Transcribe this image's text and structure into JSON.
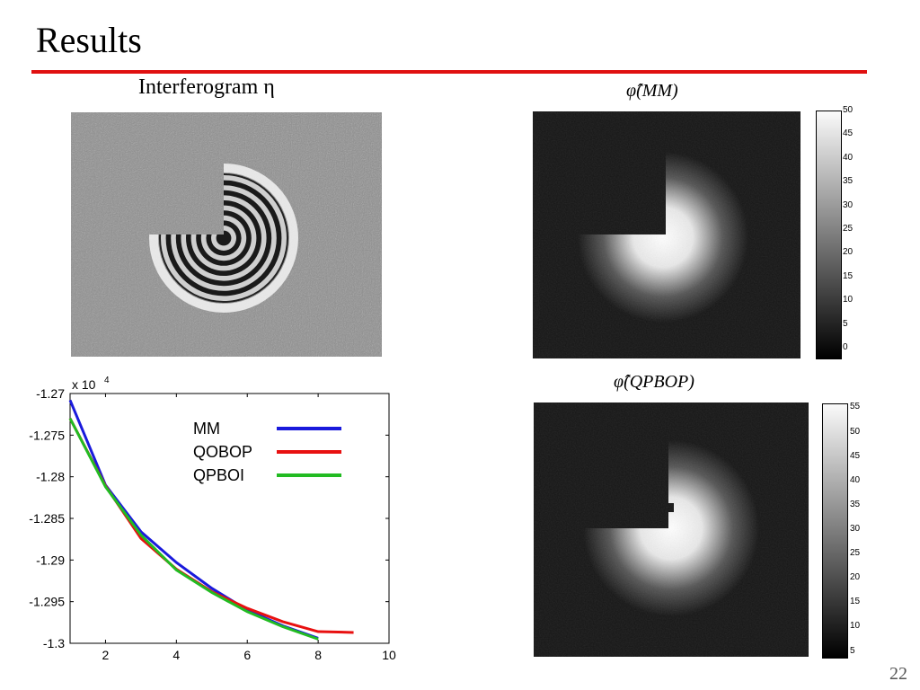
{
  "slide": {
    "title": "Results",
    "page_number": "22"
  },
  "panels": {
    "interferogram_caption": "Interferogram η",
    "phi_mm_caption": "φ̂(MM)",
    "phi_qpbop_caption": "φ̂(QPBOP)"
  },
  "colorbars": {
    "mm": {
      "ticks": [
        "50",
        "45",
        "40",
        "35",
        "30",
        "25",
        "20",
        "15",
        "10",
        "5",
        "0"
      ],
      "min": 0,
      "max": 50
    },
    "qpbop": {
      "ticks": [
        "55",
        "50",
        "45",
        "40",
        "35",
        "30",
        "25",
        "20",
        "15",
        "10",
        "5"
      ],
      "min": 4,
      "max": 56
    }
  },
  "chart_data": {
    "type": "line",
    "title": "",
    "xlabel": "",
    "ylabel": "",
    "xlim": [
      1,
      10
    ],
    "ylim": [
      -1.3,
      -1.27
    ],
    "y_exponent_label": "x 10",
    "y_exponent": "4",
    "xticks": [
      "2",
      "4",
      "6",
      "8",
      "10"
    ],
    "yticks": [
      "-1.27",
      "-1.275",
      "-1.28",
      "-1.285",
      "-1.29",
      "-1.295",
      "-1.3"
    ],
    "legend_position": "top-right",
    "series": [
      {
        "name": "MM",
        "color": "#1a1adc",
        "x": [
          1,
          2,
          3,
          4,
          5,
          6,
          7,
          8
        ],
        "y": [
          -1.2708,
          -1.281,
          -1.2866,
          -1.2903,
          -1.2934,
          -1.296,
          -1.2979,
          -1.2994
        ]
      },
      {
        "name": "QOBOP",
        "color": "#e81010",
        "x": [
          1,
          2,
          3,
          4,
          5,
          6,
          7,
          8,
          9
        ],
        "y": [
          -1.273,
          -1.2811,
          -1.2874,
          -1.2911,
          -1.2938,
          -1.2958,
          -1.2974,
          -1.2986,
          -1.2987
        ]
      },
      {
        "name": "QPBOI",
        "color": "#22bb22",
        "x": [
          1,
          2,
          3,
          4,
          5,
          6,
          7,
          8
        ],
        "y": [
          -1.273,
          -1.2812,
          -1.287,
          -1.2912,
          -1.2939,
          -1.2962,
          -1.298,
          -1.2995
        ]
      }
    ]
  }
}
